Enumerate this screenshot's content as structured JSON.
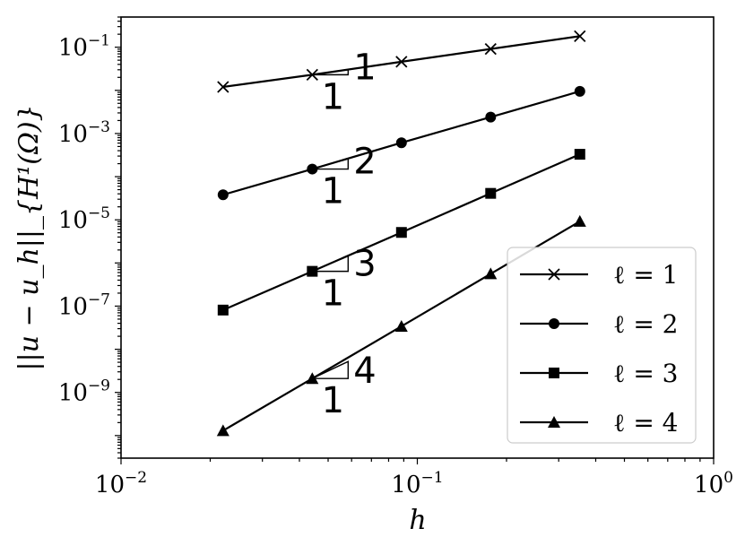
{
  "chart_data": {
    "type": "line",
    "xscale": "log",
    "yscale": "log",
    "xlabel": "h",
    "ylabel": "||u − u_h||_{H¹(Ω)}",
    "xlim": [
      0.01,
      1
    ],
    "ylim": [
      3e-11,
      0.5
    ],
    "xticks": [
      {
        "value": 0.01,
        "base": "10",
        "exp": "−2"
      },
      {
        "value": 0.1,
        "base": "10",
        "exp": "−1"
      },
      {
        "value": 1,
        "base": "10",
        "exp": "0"
      }
    ],
    "yticks": [
      {
        "value": 1e-09,
        "base": "10",
        "exp": "−9"
      },
      {
        "value": 1e-07,
        "base": "10",
        "exp": "−7"
      },
      {
        "value": 1e-05,
        "base": "10",
        "exp": "−5"
      },
      {
        "value": 0.001,
        "base": "10",
        "exp": "−3"
      },
      {
        "value": 0.1,
        "base": "10",
        "exp": "−1"
      }
    ],
    "x": [
      0.0221,
      0.0442,
      0.0884,
      0.1768,
      0.3536
    ],
    "series": [
      {
        "name": "ℓ = 1",
        "marker": "x",
        "values": [
          0.012,
          0.023,
          0.046,
          0.091,
          0.18
        ]
      },
      {
        "name": "ℓ = 2",
        "marker": "circle",
        "values": [
          3.8e-05,
          0.00015,
          0.00061,
          0.0024,
          0.0095
        ]
      },
      {
        "name": "ℓ = 3",
        "marker": "square",
        "values": [
          8.1e-08,
          6.4e-07,
          5.1e-06,
          4.1e-05,
          0.00033
        ]
      },
      {
        "name": "ℓ = 4",
        "marker": "triangle",
        "values": [
          1.3e-10,
          2.1e-09,
          3.4e-08,
          5.6e-07,
          9.2e-06
        ]
      }
    ],
    "slope_triangles": [
      {
        "run_label": "1",
        "rise_label": "1",
        "x_start": 0.0442,
        "y_start": 0.023,
        "slope": 1
      },
      {
        "run_label": "1",
        "rise_label": "2",
        "x_start": 0.0442,
        "y_start": 0.00015,
        "slope": 2
      },
      {
        "run_label": "1",
        "rise_label": "3",
        "x_start": 0.0442,
        "y_start": 6.4e-07,
        "slope": 3
      },
      {
        "run_label": "1",
        "rise_label": "4",
        "x_start": 0.0442,
        "y_start": 2.1e-09,
        "slope": 4
      }
    ],
    "legend_placement": "lower-right",
    "grid": false
  }
}
